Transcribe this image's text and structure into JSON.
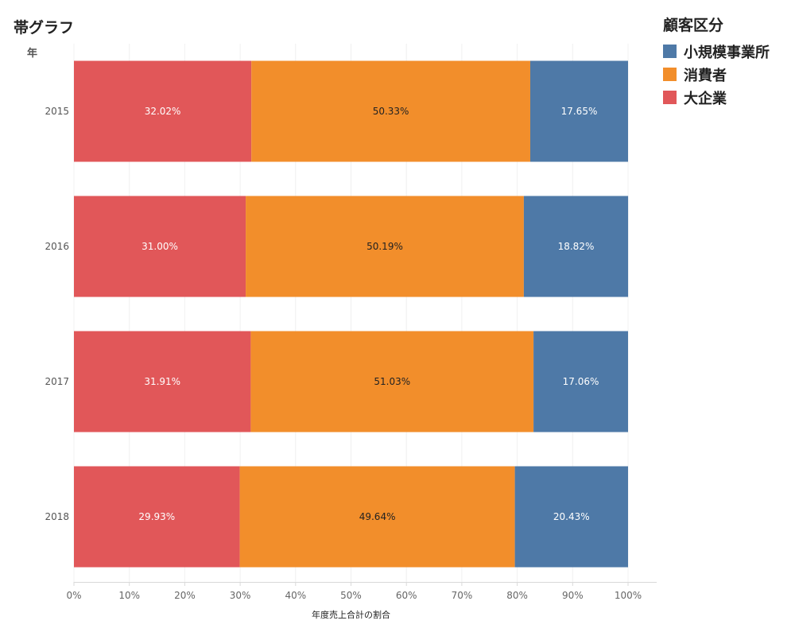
{
  "title": "帯グラフ",
  "row_header": "年",
  "legend": {
    "title": "顧客区分",
    "items": [
      {
        "label": "小規模事業所",
        "color": "#4e79a7"
      },
      {
        "label": "消費者",
        "color": "#f28e2b"
      },
      {
        "label": "大企業",
        "color": "#e15759"
      }
    ]
  },
  "x_axis_title": "年度売上合計の割合",
  "chart_data": {
    "type": "bar",
    "orientation": "horizontal",
    "stacked": "percent",
    "categories": [
      "2015",
      "2016",
      "2017",
      "2018"
    ],
    "series": [
      {
        "name": "大企業",
        "color": "#e15759",
        "values": [
          32.02,
          31.0,
          31.91,
          29.93
        ],
        "labels": [
          "32.02%",
          "31.00%",
          "31.91%",
          "29.93%"
        ],
        "label_color": "#ffffff"
      },
      {
        "name": "消費者",
        "color": "#f28e2b",
        "values": [
          50.33,
          50.19,
          51.03,
          49.64
        ],
        "labels": [
          "50.33%",
          "50.19%",
          "51.03%",
          "49.64%"
        ],
        "label_color": "#222222"
      },
      {
        "name": "小規模事業所",
        "color": "#4e79a7",
        "values": [
          17.65,
          18.82,
          17.06,
          20.43
        ],
        "labels": [
          "17.65%",
          "18.82%",
          "17.06%",
          "20.43%"
        ],
        "label_color": "#ffffff"
      }
    ],
    "xlabel": "年度売上合計の割合",
    "ylabel": "年",
    "xlim": [
      0,
      100
    ],
    "xticks": [
      0,
      10,
      20,
      30,
      40,
      50,
      60,
      70,
      80,
      90,
      100
    ],
    "xtick_labels": [
      "0%",
      "10%",
      "20%",
      "30%",
      "40%",
      "50%",
      "60%",
      "70%",
      "80%",
      "90%",
      "100%"
    ],
    "grid": true,
    "legend_position": "top-right"
  }
}
